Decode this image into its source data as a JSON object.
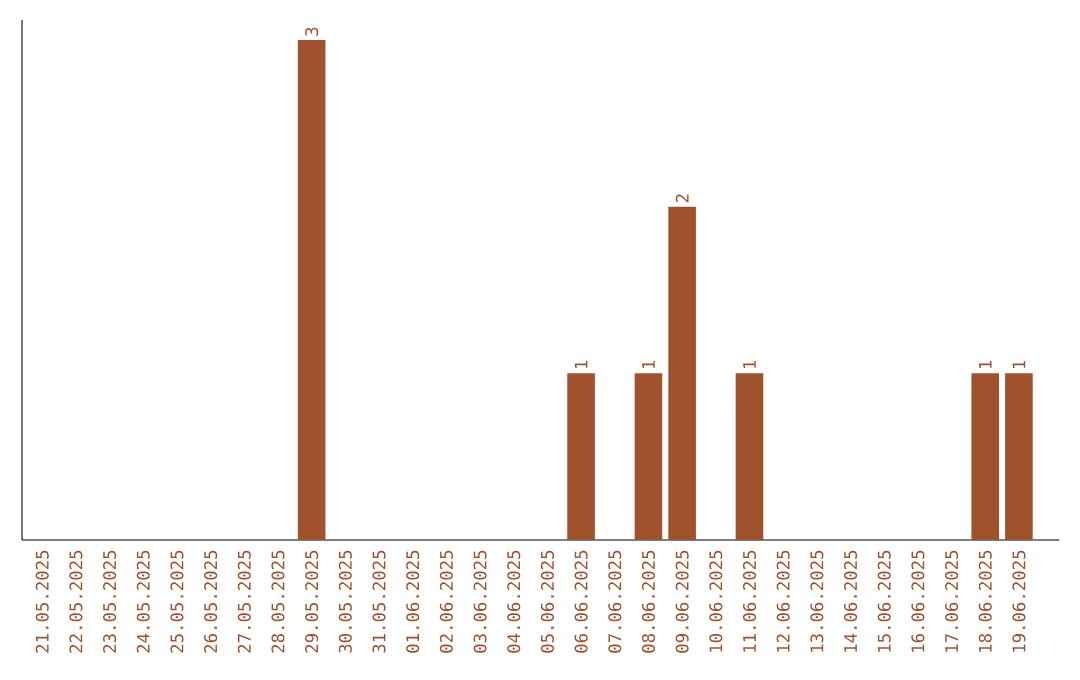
{
  "chart_data": {
    "type": "bar",
    "categories": [
      "21.05.2025",
      "22.05.2025",
      "23.05.2025",
      "24.05.2025",
      "25.05.2025",
      "26.05.2025",
      "27.05.2025",
      "28.05.2025",
      "29.05.2025",
      "30.05.2025",
      "31.05.2025",
      "01.06.2025",
      "02.06.2025",
      "03.06.2025",
      "04.06.2025",
      "05.06.2025",
      "06.06.2025",
      "07.06.2025",
      "08.06.2025",
      "09.06.2025",
      "10.06.2025",
      "11.06.2025",
      "12.06.2025",
      "13.06.2025",
      "14.06.2025",
      "15.06.2025",
      "16.06.2025",
      "17.06.2025",
      "18.06.2025",
      "19.06.2025"
    ],
    "values": [
      0,
      0,
      0,
      0,
      0,
      0,
      0,
      0,
      3,
      0,
      0,
      0,
      0,
      0,
      0,
      0,
      1,
      0,
      1,
      2,
      0,
      1,
      0,
      0,
      0,
      0,
      0,
      0,
      1,
      1
    ],
    "value_labels": [
      null,
      null,
      null,
      null,
      null,
      null,
      null,
      null,
      "3",
      null,
      null,
      null,
      null,
      null,
      null,
      null,
      "1",
      null,
      "1",
      "2",
      null,
      "1",
      null,
      null,
      null,
      null,
      null,
      null,
      "1",
      "1"
    ],
    "color": "#a0522d",
    "tick_labels": "x"
  }
}
